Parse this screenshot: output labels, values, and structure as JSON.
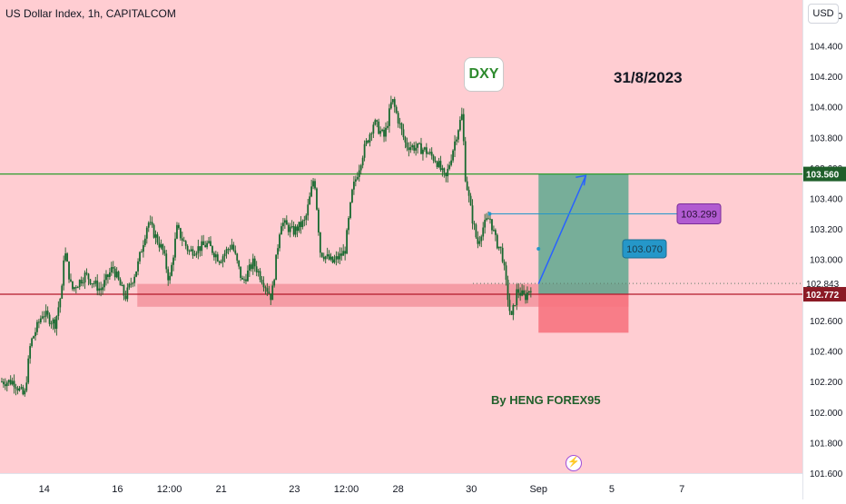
{
  "header": {
    "symbol_title": "US Dollar Index, 1h, CAPITALCOM",
    "currency": "USD"
  },
  "annotations": {
    "symbol_badge": "DXY",
    "date": "31/8/2023",
    "author": "By HENG FOREX95"
  },
  "colors": {
    "background": "#ffcdd2",
    "candle_body": "#17692f",
    "candle_wick": "#1f5f2a",
    "resistance_line": "#2f9e2f",
    "support_line": "#b2182b",
    "support_zone": "#f28b95",
    "target_zone": "#5fa88f",
    "stop_zone": "#f7747f",
    "arrow": "#2962ff",
    "tp2_label": "#b15bd1",
    "tp1_label": "#2597c9",
    "price_tag_dark": "#1f5f2a",
    "price_tag_red": "#8b1a25"
  },
  "icons": {
    "events": "lightning-icon"
  },
  "chart_data": {
    "type": "candlestick",
    "title": "US Dollar Index, 1h, CAPITALCOM",
    "timeframe": "1h",
    "ylim": [
      101.6,
      104.7
    ],
    "xlim": [
      0,
      26.3
    ],
    "y_ticks": [
      "101.600",
      "101.800",
      "102.000",
      "102.200",
      "102.400",
      "102.600",
      "102.800",
      "103.000",
      "103.200",
      "103.400",
      "103.600",
      "103.800",
      "104.000",
      "104.200",
      "104.400",
      "104.600"
    ],
    "x_ticks": [
      {
        "label": "14",
        "x": 1.45
      },
      {
        "label": "16",
        "x": 3.85
      },
      {
        "label": "12:00",
        "x": 5.55
      },
      {
        "label": "21",
        "x": 7.25
      },
      {
        "label": "23",
        "x": 9.65
      },
      {
        "label": "12:00",
        "x": 11.35
      },
      {
        "label": "28",
        "x": 13.05
      },
      {
        "label": "30",
        "x": 15.45
      },
      {
        "label": "Sep",
        "x": 17.65
      },
      {
        "label": "5",
        "x": 20.05
      },
      {
        "label": "7",
        "x": 22.35
      }
    ],
    "price_path": [
      {
        "x": 0.0,
        "y": 102.2
      },
      {
        "x": 0.45,
        "y": 102.2
      },
      {
        "x": 0.8,
        "y": 102.1
      },
      {
        "x": 1.0,
        "y": 102.45
      },
      {
        "x": 1.4,
        "y": 102.65
      },
      {
        "x": 1.8,
        "y": 102.58
      },
      {
        "x": 2.05,
        "y": 102.82
      },
      {
        "x": 2.1,
        "y": 103.08
      },
      {
        "x": 2.35,
        "y": 102.8
      },
      {
        "x": 2.8,
        "y": 102.9
      },
      {
        "x": 3.3,
        "y": 102.8
      },
      {
        "x": 3.7,
        "y": 102.95
      },
      {
        "x": 4.1,
        "y": 102.75
      },
      {
        "x": 4.5,
        "y": 102.95
      },
      {
        "x": 4.85,
        "y": 103.25
      },
      {
        "x": 5.35,
        "y": 103.05
      },
      {
        "x": 5.55,
        "y": 102.85
      },
      {
        "x": 5.8,
        "y": 103.2
      },
      {
        "x": 6.2,
        "y": 103.05
      },
      {
        "x": 6.8,
        "y": 103.1
      },
      {
        "x": 7.2,
        "y": 103.0
      },
      {
        "x": 7.6,
        "y": 103.1
      },
      {
        "x": 7.95,
        "y": 102.85
      },
      {
        "x": 8.3,
        "y": 102.98
      },
      {
        "x": 8.65,
        "y": 102.85
      },
      {
        "x": 8.9,
        "y": 102.75
      },
      {
        "x": 9.2,
        "y": 103.25
      },
      {
        "x": 9.6,
        "y": 103.18
      },
      {
        "x": 10.0,
        "y": 103.25
      },
      {
        "x": 10.3,
        "y": 103.55
      },
      {
        "x": 10.5,
        "y": 103.05
      },
      {
        "x": 10.9,
        "y": 102.98
      },
      {
        "x": 11.3,
        "y": 103.05
      },
      {
        "x": 11.55,
        "y": 103.45
      },
      {
        "x": 11.9,
        "y": 103.7
      },
      {
        "x": 12.25,
        "y": 103.9
      },
      {
        "x": 12.6,
        "y": 103.8
      },
      {
        "x": 12.85,
        "y": 104.05
      },
      {
        "x": 13.3,
        "y": 103.75
      },
      {
        "x": 13.9,
        "y": 103.72
      },
      {
        "x": 14.3,
        "y": 103.65
      },
      {
        "x": 14.6,
        "y": 103.52
      },
      {
        "x": 15.0,
        "y": 103.85
      },
      {
        "x": 15.15,
        "y": 103.95
      },
      {
        "x": 15.25,
        "y": 103.55
      },
      {
        "x": 15.45,
        "y": 103.3
      },
      {
        "x": 15.65,
        "y": 103.1
      },
      {
        "x": 15.8,
        "y": 103.2
      },
      {
        "x": 16.05,
        "y": 103.28
      },
      {
        "x": 16.25,
        "y": 103.12
      },
      {
        "x": 16.45,
        "y": 103.05
      },
      {
        "x": 16.6,
        "y": 102.82
      },
      {
        "x": 16.75,
        "y": 102.6
      },
      {
        "x": 16.95,
        "y": 102.8
      },
      {
        "x": 17.2,
        "y": 102.75
      },
      {
        "x": 17.45,
        "y": 102.84
      }
    ],
    "levels": [
      {
        "name": "resistance",
        "value": 103.56,
        "label": "103.560"
      },
      {
        "name": "support",
        "value": 102.772,
        "label": "102.772"
      },
      {
        "name": "last_price",
        "value": 102.843,
        "label": "102.843"
      }
    ],
    "support_zone": {
      "from": 102.69,
      "to": 102.84,
      "x_start": 4.5,
      "x_end": 20.6
    },
    "position": {
      "type": "long",
      "entry": 102.772,
      "target": 103.56,
      "stop": 102.52,
      "x_start": 17.65,
      "x_end": 20.6,
      "take_profits": [
        {
          "label": "103.070",
          "value": 103.07
        },
        {
          "label": "103.299",
          "value": 103.299
        }
      ],
      "arrow": {
        "from": {
          "x": 17.65,
          "y": 102.84
        },
        "to": {
          "x": 19.2,
          "y": 103.55
        }
      }
    }
  }
}
